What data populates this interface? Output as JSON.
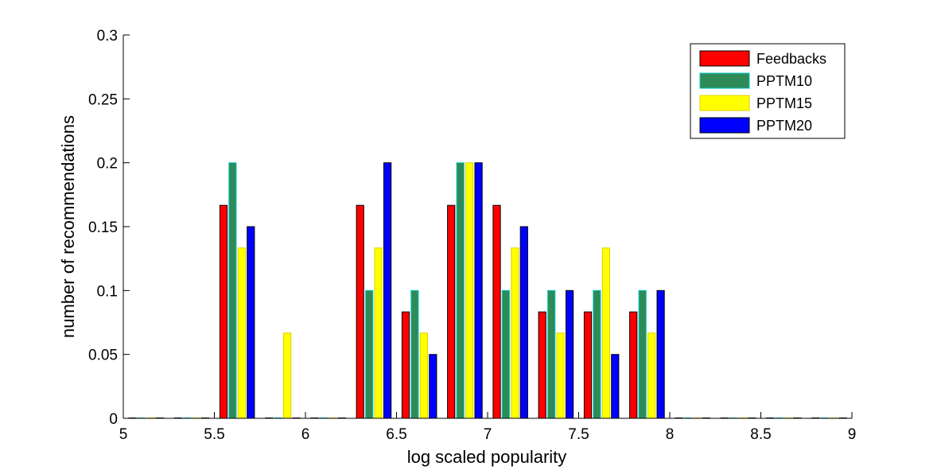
{
  "chart_data": {
    "type": "bar",
    "title": "",
    "xlabel": "log scaled popularity",
    "ylabel": "number of recommendations",
    "xlim": [
      5,
      9
    ],
    "ylim": [
      0,
      0.3
    ],
    "xticks": [
      "5",
      "5.5",
      "6",
      "6.5",
      "7",
      "7.5",
      "8",
      "8.5",
      "9"
    ],
    "yticks": [
      "0",
      "0.05",
      "0.1",
      "0.15",
      "0.2",
      "0.25",
      "0.3"
    ],
    "grid": false,
    "legend_position": "top-right",
    "bin_centers": [
      5.125,
      5.375,
      5.625,
      5.875,
      6.125,
      6.375,
      6.625,
      6.875,
      7.125,
      7.375,
      7.625,
      7.875,
      8.125,
      8.375,
      8.625,
      8.875
    ],
    "series": [
      {
        "name": "Feedbacks",
        "color": "#ff0000",
        "edge": "#000000",
        "values": [
          0,
          0,
          0.1667,
          0,
          0,
          0.1667,
          0.0833,
          0.1667,
          0.1667,
          0.0833,
          0.0833,
          0.0833,
          0,
          0,
          0,
          0
        ]
      },
      {
        "name": "PPTM10",
        "color": "#2e8b57",
        "edge": "#00c8c8",
        "values": [
          0,
          0,
          0.2,
          0,
          0,
          0.1,
          0.1,
          0.2,
          0.1,
          0.1,
          0.1,
          0.1,
          0,
          0,
          0,
          0
        ]
      },
      {
        "name": "PPTM15",
        "color": "#ffff00",
        "edge": "#e0d000",
        "values": [
          0,
          0,
          0.1333,
          0.0667,
          0,
          0.1333,
          0.0667,
          0.2,
          0.1333,
          0.0667,
          0.1333,
          0.0667,
          0,
          0,
          0,
          0
        ]
      },
      {
        "name": "PPTM20",
        "color": "#0000ff",
        "edge": "#000000",
        "values": [
          0,
          0,
          0.15,
          0,
          0,
          0.2,
          0.05,
          0.2,
          0.15,
          0.1,
          0.05,
          0.1,
          0,
          0,
          0,
          0
        ]
      }
    ]
  }
}
